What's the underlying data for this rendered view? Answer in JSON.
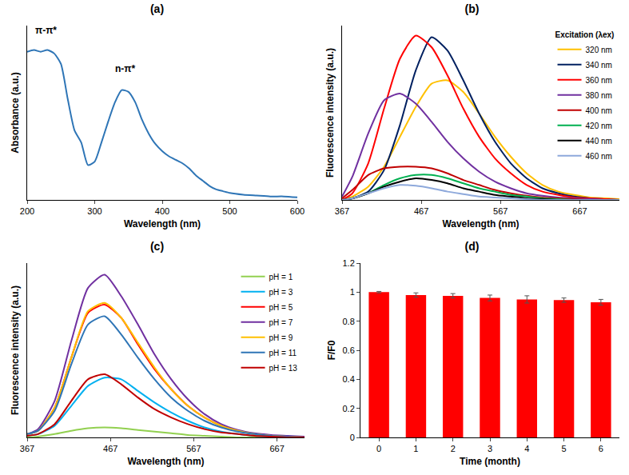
{
  "chart_data": [
    {
      "type": "line",
      "title": "(a)",
      "x_label": "Wavelength (nm)",
      "y_label": "Absorbance (a.u.)",
      "x": [
        200,
        210,
        220,
        230,
        240,
        250,
        260,
        270,
        280,
        290,
        300,
        310,
        320,
        330,
        340,
        350,
        360,
        370,
        380,
        390,
        400,
        410,
        420,
        430,
        440,
        450,
        460,
        470,
        480,
        490,
        500,
        520,
        540,
        560,
        580,
        600
      ],
      "values": [
        85,
        86,
        85,
        86,
        84,
        78,
        58,
        40,
        33,
        20,
        22,
        33,
        45,
        56,
        63,
        62,
        56,
        46,
        38,
        32,
        28,
        25,
        23,
        21,
        18,
        14,
        11,
        8,
        6,
        5,
        4,
        3,
        2.5,
        2,
        2,
        1.5
      ],
      "color": "#2e75b6",
      "xlim": [
        200,
        600
      ],
      "xticks": [
        200,
        300,
        400,
        500,
        600
      ],
      "ylim": [
        0,
        100
      ],
      "tick_labels": "x",
      "grid": false,
      "annotations": [
        {
          "text": "π-π*",
          "x": 228,
          "y": 93
        },
        {
          "text": "n-π*",
          "x": 345,
          "y": 71
        }
      ]
    },
    {
      "type": "line",
      "title": "(b)",
      "x_label": "Wavelength (nm)",
      "y_label": "Fluorescence intensity (a.u.)",
      "legend_title": "Excitation (λex)",
      "legend": "top right",
      "x": [
        367,
        380,
        400,
        420,
        440,
        460,
        480,
        500,
        520,
        540,
        560,
        580,
        600,
        620,
        640,
        660,
        680,
        700,
        717
      ],
      "series": [
        {
          "name": "320 nm",
          "color": "#ffc000",
          "values": [
            0,
            2,
            8,
            20,
            38,
            56,
            70,
            72,
            65,
            52,
            38,
            26,
            16,
            9,
            5,
            3,
            1.5,
            1,
            0.5
          ]
        },
        {
          "name": "340 nm",
          "color": "#002060",
          "values": [
            0,
            1,
            5,
            18,
            45,
            78,
            98,
            90,
            72,
            52,
            35,
            22,
            13,
            7,
            4,
            2,
            1,
            0.5,
            0
          ]
        },
        {
          "name": "360 nm",
          "color": "#ff0000",
          "values": [
            0,
            4,
            22,
            55,
            85,
            99,
            92,
            75,
            55,
            38,
            25,
            16,
            9,
            5,
            3,
            1.5,
            1,
            0.5,
            0
          ]
        },
        {
          "name": "380 nm",
          "color": "#7030a0",
          "values": [
            2,
            14,
            40,
            60,
            64,
            58,
            47,
            35,
            25,
            17,
            11,
            7,
            4,
            2.5,
            1.5,
            1,
            0.5,
            0,
            0
          ]
        },
        {
          "name": "400 nm",
          "color": "#c00000",
          "values": [
            1,
            6,
            15,
            19,
            20,
            20,
            19,
            16,
            12,
            9,
            6,
            4,
            2.5,
            1.5,
            1,
            0.5,
            0,
            0,
            0
          ]
        },
        {
          "name": "420 nm",
          "color": "#00b050",
          "values": [
            0,
            1,
            4,
            9,
            13,
            15,
            15,
            13,
            10,
            7,
            5,
            3,
            2,
            1,
            0.5,
            0,
            0,
            0,
            0
          ]
        },
        {
          "name": "440 nm",
          "color": "#000000",
          "values": [
            0,
            1,
            4,
            8,
            11,
            13,
            12,
            10,
            7,
            5,
            3,
            2,
            1,
            0.5,
            0,
            0,
            0,
            0,
            0
          ]
        },
        {
          "name": "460 nm",
          "color": "#8ea9db",
          "values": [
            0,
            1,
            4,
            7,
            9,
            8.5,
            7,
            5,
            3.5,
            2,
            1.5,
            1,
            0.5,
            0,
            0,
            0,
            0,
            0,
            0
          ]
        }
      ],
      "xlim": [
        367,
        717
      ],
      "xticks": [
        367,
        467,
        567,
        667
      ],
      "ylim": [
        0,
        105
      ],
      "tick_labels": "x",
      "grid": false
    },
    {
      "type": "line",
      "title": "(c)",
      "x_label": "Wavelength (nm)",
      "y_label": "Fluorescence intensity (a.u.)",
      "legend": "top right",
      "x": [
        367,
        380,
        400,
        420,
        440,
        460,
        480,
        500,
        520,
        540,
        560,
        580,
        600,
        620,
        640,
        660,
        680,
        700
      ],
      "series": [
        {
          "name": "pH = 1",
          "color": "#92d050",
          "values": [
            0,
            0.5,
            2,
            4,
            5.5,
            6,
            5.5,
            4.5,
            3.5,
            2.5,
            1.5,
            1,
            0.5,
            0,
            0,
            0,
            0,
            0
          ]
        },
        {
          "name": "pH = 3",
          "color": "#00b0f0",
          "values": [
            1,
            2,
            7,
            19,
            31,
            36,
            35,
            28,
            21,
            15,
            10,
            6,
            3.5,
            2,
            1,
            0.5,
            0,
            0
          ]
        },
        {
          "name": "pH = 5",
          "color": "#ff0000",
          "values": [
            2,
            4,
            18,
            48,
            75,
            80,
            72,
            56,
            41,
            29,
            19,
            12,
            7,
            4,
            2,
            1,
            0.5,
            0
          ]
        },
        {
          "name": "pH = 7",
          "color": "#7030a0",
          "values": [
            2,
            5,
            22,
            58,
            90,
            98,
            85,
            68,
            50,
            35,
            23,
            14,
            8,
            4.5,
            2.5,
            1.5,
            1,
            0.5
          ]
        },
        {
          "name": "pH = 9",
          "color": "#ffc000",
          "values": [
            2,
            4,
            18,
            48,
            76,
            81,
            72,
            57,
            42,
            29,
            19,
            12,
            7,
            4,
            2,
            1,
            0.5,
            0
          ]
        },
        {
          "name": "pH = 11",
          "color": "#2e75b6",
          "values": [
            2,
            4,
            16,
            44,
            68,
            73,
            62,
            48,
            35,
            24,
            16,
            10,
            6,
            3.5,
            2,
            1,
            0.5,
            0
          ]
        },
        {
          "name": "pH = 13",
          "color": "#c00000",
          "values": [
            1,
            2,
            8,
            22,
            35,
            38,
            32,
            24,
            17,
            12,
            8,
            5,
            3,
            2,
            1,
            0.5,
            0,
            0
          ]
        }
      ],
      "xlim": [
        367,
        700
      ],
      "xticks": [
        367,
        467,
        567,
        667
      ],
      "ylim": [
        0,
        105
      ],
      "tick_labels": "x",
      "grid": false
    },
    {
      "type": "bar",
      "title": "(d)",
      "x_label": "Time (month)",
      "y_label": "F/F0",
      "x": [
        0,
        1,
        2,
        3,
        4,
        5,
        6
      ],
      "values": [
        1.0,
        0.98,
        0.975,
        0.96,
        0.95,
        0.945,
        0.93
      ],
      "errors": [
        0.005,
        0.015,
        0.015,
        0.02,
        0.025,
        0.015,
        0.02
      ],
      "color": "#ff0000",
      "xlim": [
        -0.5,
        6.5
      ],
      "xticks": [
        0,
        1,
        2,
        3,
        4,
        5,
        6
      ],
      "ylim": [
        0,
        1.2
      ],
      "yticks": [
        0,
        0.2,
        0.4,
        0.6,
        0.8,
        1,
        1.2
      ],
      "grid": false
    }
  ]
}
